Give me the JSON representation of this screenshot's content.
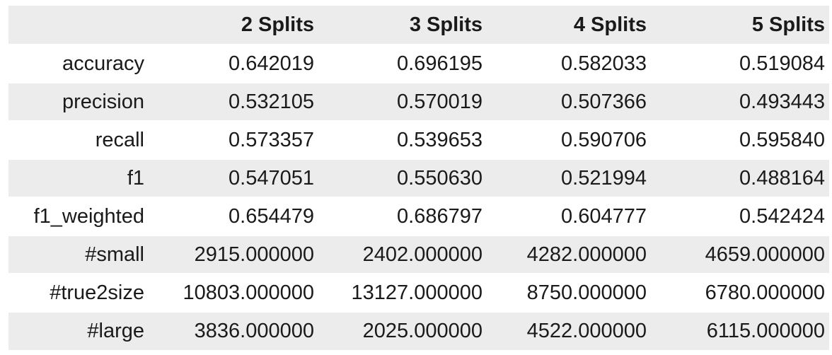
{
  "table": {
    "columns": [
      "",
      "2 Splits",
      "3 Splits",
      "4 Splits",
      "5 Splits"
    ],
    "rows": [
      {
        "label": "accuracy",
        "values": [
          "0.642019",
          "0.696195",
          "0.582033",
          "0.519084"
        ]
      },
      {
        "label": "precision",
        "values": [
          "0.532105",
          "0.570019",
          "0.507366",
          "0.493443"
        ]
      },
      {
        "label": "recall",
        "values": [
          "0.573357",
          "0.539653",
          "0.590706",
          "0.595840"
        ]
      },
      {
        "label": "f1",
        "values": [
          "0.547051",
          "0.550630",
          "0.521994",
          "0.488164"
        ]
      },
      {
        "label": "f1_weighted",
        "values": [
          "0.654479",
          "0.686797",
          "0.604777",
          "0.542424"
        ]
      },
      {
        "label": "#small",
        "values": [
          "2915.000000",
          "2402.000000",
          "4282.000000",
          "4659.000000"
        ]
      },
      {
        "label": "#true2size",
        "values": [
          "10803.000000",
          "13127.000000",
          "8750.000000",
          "6780.000000"
        ]
      },
      {
        "label": "#large",
        "values": [
          "3836.000000",
          "2025.000000",
          "4522.000000",
          "6115.000000"
        ]
      }
    ]
  },
  "colors": {
    "header_bg": "#ececec",
    "stripe_bg": "#ececec",
    "text": "#1a1a1a"
  }
}
